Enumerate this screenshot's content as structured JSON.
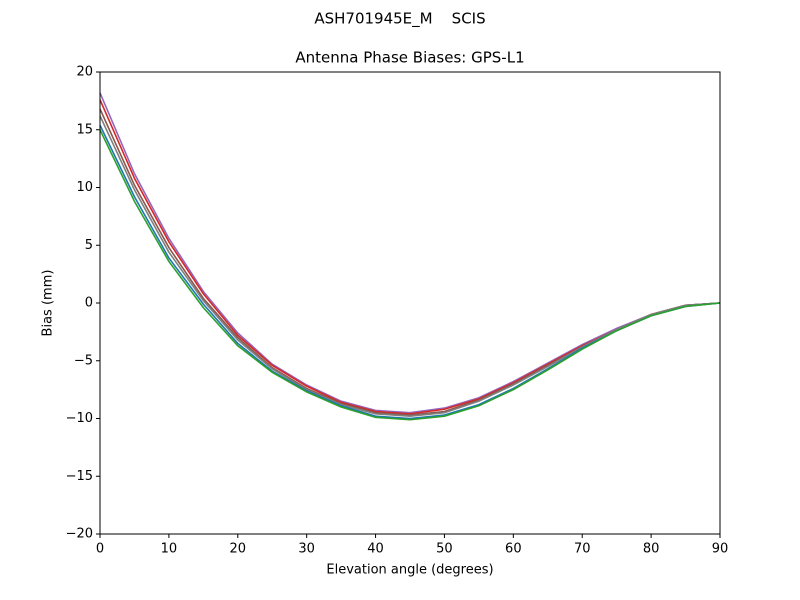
{
  "chart_data": {
    "type": "line",
    "suptitle": "ASH701945E_M    SCIS",
    "title": "Antenna Phase Biases: GPS-L1",
    "x_label": "Elevation angle (degrees)",
    "y_label": "Bias (mm)",
    "x": [
      0,
      5,
      10,
      15,
      20,
      25,
      30,
      35,
      40,
      45,
      50,
      55,
      60,
      65,
      70,
      75,
      80,
      85,
      90
    ],
    "series": [
      {
        "color": "#9467bd",
        "values": [
          18.2,
          11.2,
          5.6,
          1.0,
          -2.6,
          -5.3,
          -7.1,
          -8.5,
          -9.3,
          -9.5,
          -9.1,
          -8.2,
          -6.8,
          -5.2,
          -3.6,
          -2.2,
          -1.0,
          -0.2,
          0
        ]
      },
      {
        "color": "#d62728",
        "values": [
          17.6,
          10.8,
          5.3,
          0.8,
          -2.8,
          -5.4,
          -7.2,
          -8.6,
          -9.4,
          -9.6,
          -9.2,
          -8.3,
          -6.9,
          -5.3,
          -3.7,
          -2.3,
          -1.0,
          -0.2,
          0
        ]
      },
      {
        "color": "#8c564b",
        "values": [
          16.8,
          10.2,
          4.8,
          0.4,
          -3.0,
          -5.6,
          -7.4,
          -8.7,
          -9.5,
          -9.7,
          -9.4,
          -8.4,
          -7.0,
          -5.4,
          -3.8,
          -2.3,
          -1.0,
          -0.2,
          0
        ]
      },
      {
        "color": "#7f7f7f",
        "values": [
          16.2,
          9.8,
          4.4,
          0.2,
          -3.2,
          -5.7,
          -7.5,
          -8.8,
          -9.6,
          -9.8,
          -9.5,
          -8.5,
          -7.1,
          -5.5,
          -3.8,
          -2.3,
          -1.0,
          -0.2,
          0
        ]
      },
      {
        "color": "#1f77b4",
        "values": [
          15.4,
          9.2,
          3.9,
          -0.1,
          -3.5,
          -5.9,
          -7.6,
          -8.9,
          -9.8,
          -10.0,
          -9.7,
          -8.8,
          -7.4,
          -5.7,
          -3.9,
          -2.4,
          -1.1,
          -0.3,
          0
        ]
      },
      {
        "color": "#2ca02c",
        "values": [
          15.0,
          8.8,
          3.6,
          -0.4,
          -3.7,
          -6.0,
          -7.7,
          -9.0,
          -9.9,
          -10.1,
          -9.8,
          -8.9,
          -7.5,
          -5.8,
          -4.0,
          -2.4,
          -1.1,
          -0.3,
          0
        ]
      }
    ],
    "xlim": [
      0,
      90
    ],
    "xticks": [
      0,
      10,
      20,
      30,
      40,
      50,
      60,
      70,
      80,
      90
    ],
    "ylim": [
      -20,
      20
    ],
    "yticks": [
      {
        "value": -20,
        "label": "−20"
      },
      {
        "value": -15,
        "label": "−15"
      },
      {
        "value": -10,
        "label": "−10"
      },
      {
        "value": -5,
        "label": "−5"
      },
      0,
      5,
      10,
      15,
      20
    ],
    "grid": false
  }
}
